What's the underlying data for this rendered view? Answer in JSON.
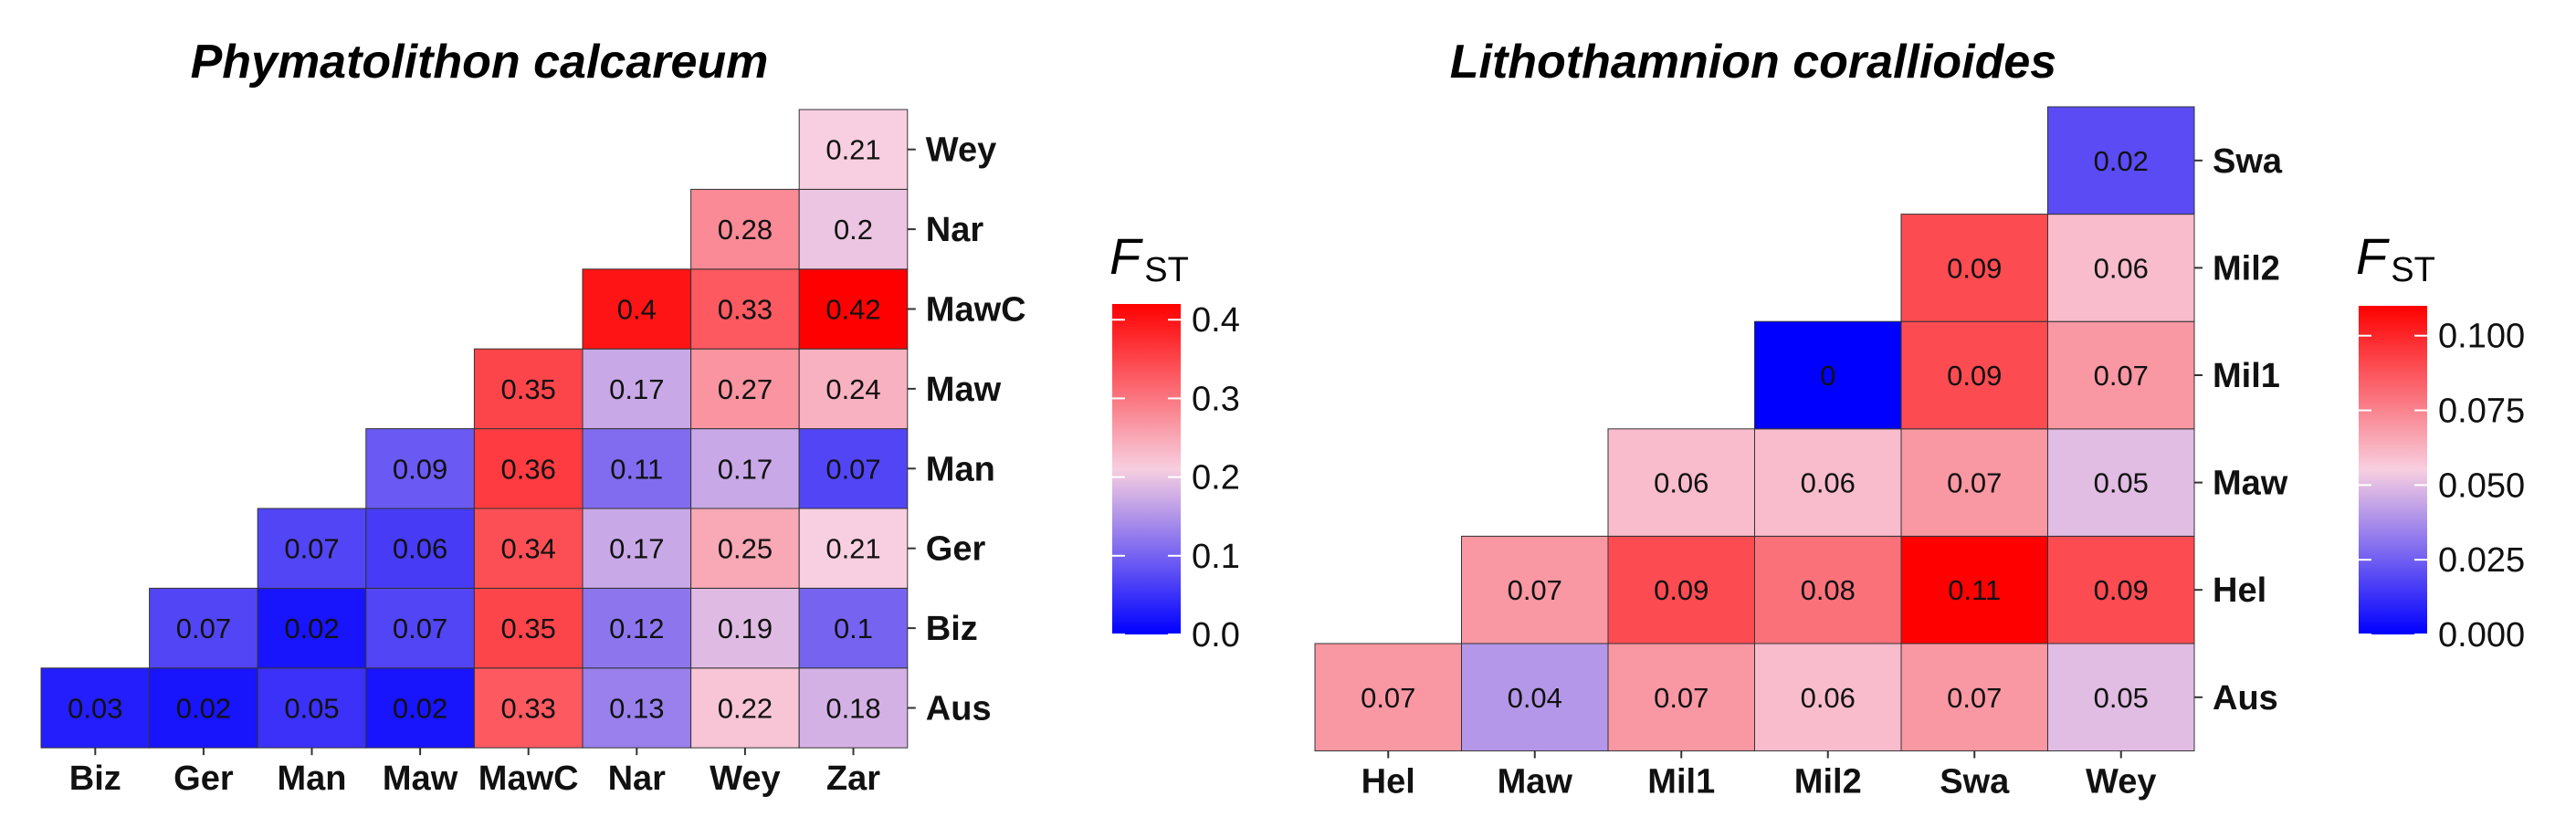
{
  "chart_data": [
    {
      "type": "heatmap",
      "title": "Phymatolithon calcareum",
      "x_categories": [
        "Biz",
        "Ger",
        "Man",
        "Maw",
        "MawC",
        "Nar",
        "Wey",
        "Zar"
      ],
      "y_categories": [
        "Aus",
        "Biz",
        "Ger",
        "Man",
        "Maw",
        "MawC",
        "Nar",
        "Wey"
      ],
      "cells": [
        {
          "x": "Biz",
          "y": "Aus",
          "value": 0.03
        },
        {
          "x": "Ger",
          "y": "Aus",
          "value": 0.02
        },
        {
          "x": "Man",
          "y": "Aus",
          "value": 0.05
        },
        {
          "x": "Maw",
          "y": "Aus",
          "value": 0.02
        },
        {
          "x": "MawC",
          "y": "Aus",
          "value": 0.33
        },
        {
          "x": "Nar",
          "y": "Aus",
          "value": 0.13
        },
        {
          "x": "Wey",
          "y": "Aus",
          "value": 0.22
        },
        {
          "x": "Zar",
          "y": "Aus",
          "value": 0.18
        },
        {
          "x": "Ger",
          "y": "Biz",
          "value": 0.07
        },
        {
          "x": "Man",
          "y": "Biz",
          "value": 0.02
        },
        {
          "x": "Maw",
          "y": "Biz",
          "value": 0.07
        },
        {
          "x": "MawC",
          "y": "Biz",
          "value": 0.35
        },
        {
          "x": "Nar",
          "y": "Biz",
          "value": 0.12
        },
        {
          "x": "Wey",
          "y": "Biz",
          "value": 0.19
        },
        {
          "x": "Zar",
          "y": "Biz",
          "value": 0.1
        },
        {
          "x": "Man",
          "y": "Ger",
          "value": 0.07
        },
        {
          "x": "Maw",
          "y": "Ger",
          "value": 0.06
        },
        {
          "x": "MawC",
          "y": "Ger",
          "value": 0.34
        },
        {
          "x": "Nar",
          "y": "Ger",
          "value": 0.17
        },
        {
          "x": "Wey",
          "y": "Ger",
          "value": 0.25
        },
        {
          "x": "Zar",
          "y": "Ger",
          "value": 0.21
        },
        {
          "x": "Maw",
          "y": "Man",
          "value": 0.09
        },
        {
          "x": "MawC",
          "y": "Man",
          "value": 0.36
        },
        {
          "x": "Nar",
          "y": "Man",
          "value": 0.11
        },
        {
          "x": "Wey",
          "y": "Man",
          "value": 0.17
        },
        {
          "x": "Zar",
          "y": "Man",
          "value": 0.07
        },
        {
          "x": "MawC",
          "y": "Maw",
          "value": 0.35
        },
        {
          "x": "Nar",
          "y": "Maw",
          "value": 0.17
        },
        {
          "x": "Wey",
          "y": "Maw",
          "value": 0.27
        },
        {
          "x": "Zar",
          "y": "Maw",
          "value": 0.24
        },
        {
          "x": "Nar",
          "y": "MawC",
          "value": 0.4
        },
        {
          "x": "Wey",
          "y": "MawC",
          "value": 0.33
        },
        {
          "x": "Zar",
          "y": "MawC",
          "value": 0.42
        },
        {
          "x": "Wey",
          "y": "Nar",
          "value": 0.28
        },
        {
          "x": "Zar",
          "y": "Nar",
          "value": 0.2
        },
        {
          "x": "Zar",
          "y": "Wey",
          "value": 0.21
        }
      ],
      "legend": {
        "title": "F",
        "title_subscript": "ST",
        "range": [
          0.0,
          0.42
        ],
        "ticks": [
          0.0,
          0.1,
          0.2,
          0.3,
          0.4
        ],
        "tick_labels": [
          "0.0",
          "0.1",
          "0.2",
          "0.3",
          "0.4"
        ],
        "placement": "right"
      },
      "colors": {
        "low": "#0000ff",
        "mid": "#f7cfe0",
        "high": "#ff0000"
      }
    },
    {
      "type": "heatmap",
      "title": "Lithothamnion corallioides",
      "x_categories": [
        "Hel",
        "Maw",
        "Mil1",
        "Mil2",
        "Swa",
        "Wey"
      ],
      "y_categories": [
        "Aus",
        "Hel",
        "Maw",
        "Mil1",
        "Mil2",
        "Swa"
      ],
      "cells": [
        {
          "x": "Hel",
          "y": "Aus",
          "value": 0.07
        },
        {
          "x": "Maw",
          "y": "Aus",
          "value": 0.04
        },
        {
          "x": "Mil1",
          "y": "Aus",
          "value": 0.07
        },
        {
          "x": "Mil2",
          "y": "Aus",
          "value": 0.06
        },
        {
          "x": "Swa",
          "y": "Aus",
          "value": 0.07
        },
        {
          "x": "Wey",
          "y": "Aus",
          "value": 0.05
        },
        {
          "x": "Maw",
          "y": "Hel",
          "value": 0.07
        },
        {
          "x": "Mil1",
          "y": "Hel",
          "value": 0.09
        },
        {
          "x": "Mil2",
          "y": "Hel",
          "value": 0.08
        },
        {
          "x": "Swa",
          "y": "Hel",
          "value": 0.11
        },
        {
          "x": "Wey",
          "y": "Hel",
          "value": 0.09
        },
        {
          "x": "Mil1",
          "y": "Maw",
          "value": 0.06
        },
        {
          "x": "Mil2",
          "y": "Maw",
          "value": 0.06
        },
        {
          "x": "Swa",
          "y": "Maw",
          "value": 0.07
        },
        {
          "x": "Wey",
          "y": "Maw",
          "value": 0.05
        },
        {
          "x": "Mil2",
          "y": "Mil1",
          "value": 0
        },
        {
          "x": "Swa",
          "y": "Mil1",
          "value": 0.09
        },
        {
          "x": "Wey",
          "y": "Mil1",
          "value": 0.07
        },
        {
          "x": "Swa",
          "y": "Mil2",
          "value": 0.09
        },
        {
          "x": "Wey",
          "y": "Mil2",
          "value": 0.06
        },
        {
          "x": "Wey",
          "y": "Swa",
          "value": 0.02
        }
      ],
      "legend": {
        "title": "F",
        "title_subscript": "ST",
        "range": [
          0.0,
          0.11
        ],
        "ticks": [
          0.0,
          0.025,
          0.05,
          0.075,
          0.1
        ],
        "tick_labels": [
          "0.000",
          "0.025",
          "0.050",
          "0.075",
          "0.100"
        ],
        "placement": "right"
      },
      "colors": {
        "low": "#0000ff",
        "mid": "#f7cfe0",
        "high": "#ff0000"
      }
    }
  ]
}
